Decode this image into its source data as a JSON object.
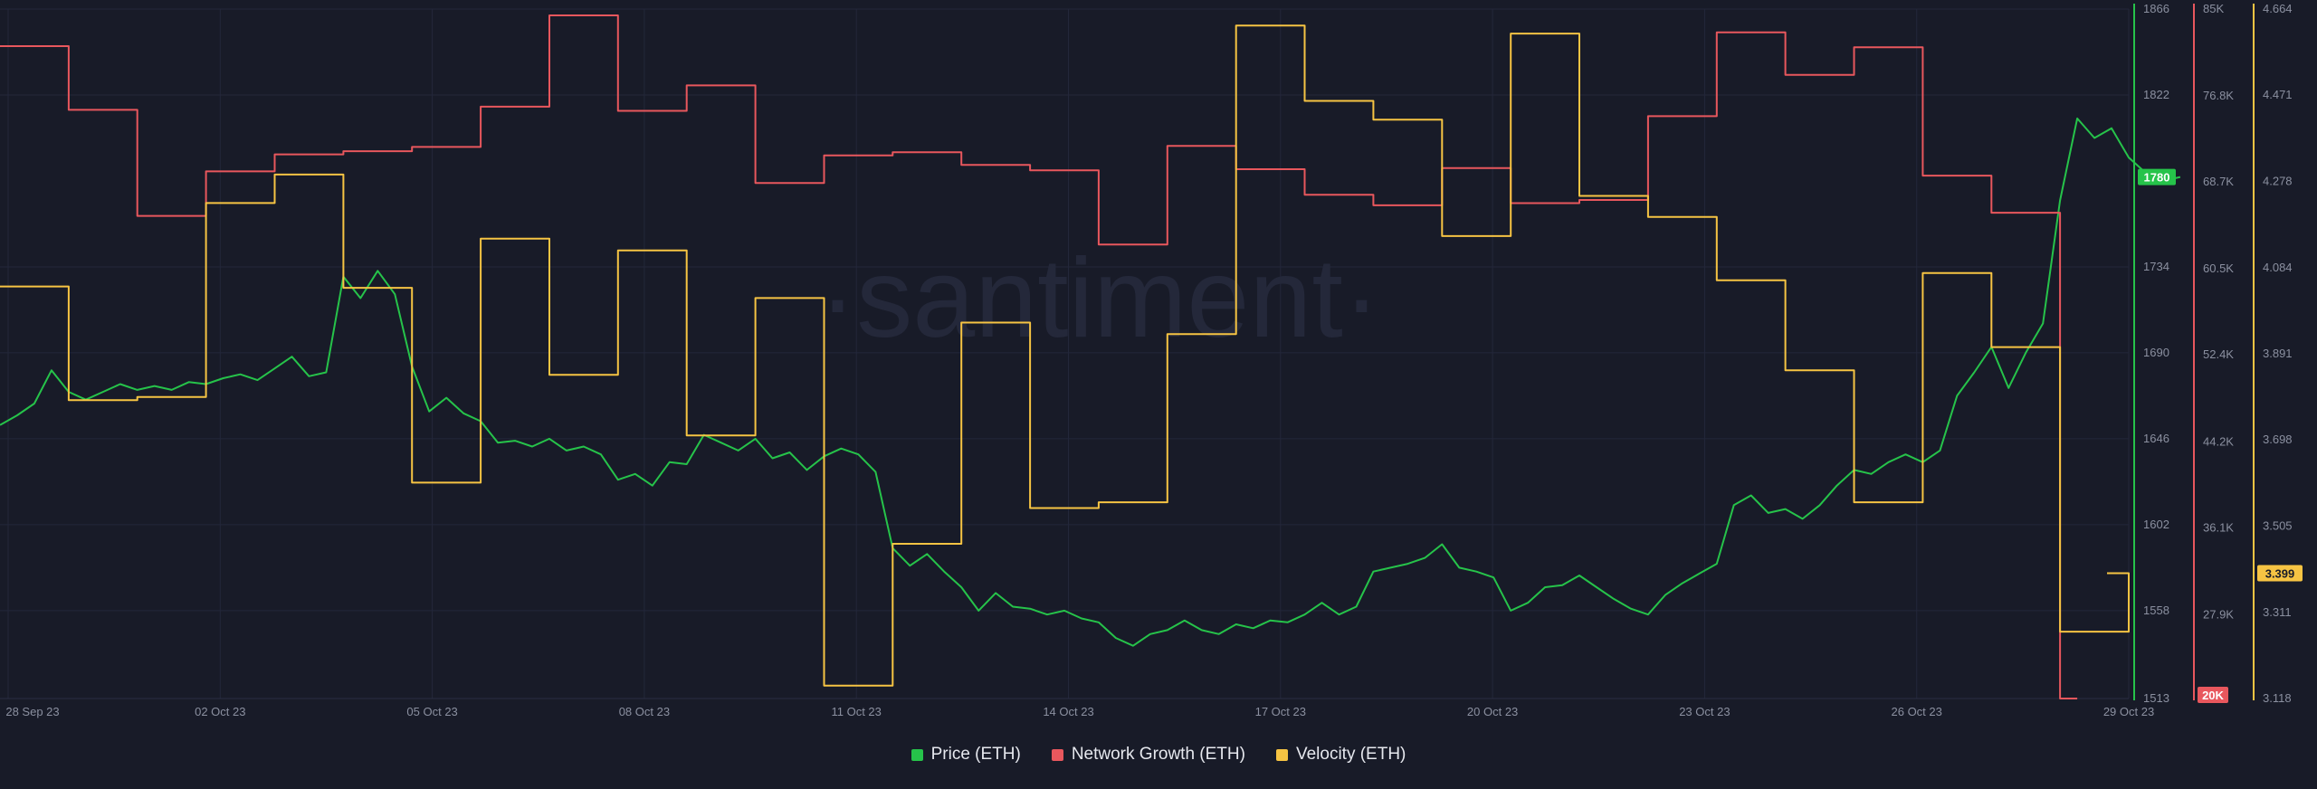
{
  "colors": {
    "background": "#181b28",
    "grid": "#23273a",
    "price": "#26c34a",
    "network_growth": "#e8575d",
    "velocity": "#f6c443",
    "tick_text": "#8b90a0",
    "watermark": "#24283a"
  },
  "watermark": "·santiment·",
  "legend": {
    "price": "Price (ETH)",
    "network_growth": "Network Growth (ETH)",
    "velocity": "Velocity (ETH)"
  },
  "chart_data": {
    "type": "line",
    "title": "",
    "xlabel": "",
    "x_ticks": [
      "28 Sep 23",
      "02 Oct 23",
      "05 Oct 23",
      "08 Oct 23",
      "11 Oct 23",
      "14 Oct 23",
      "17 Oct 23",
      "20 Oct 23",
      "23 Oct 23",
      "26 Oct 23",
      "29 Oct 23"
    ],
    "x_range": [
      "2023-09-28",
      "2023-10-29"
    ],
    "grid": true,
    "legend_position": "bottom-center",
    "axes": {
      "price": {
        "ticks": [
          "1866",
          "1822",
          "1734",
          "1690",
          "1646",
          "1602",
          "1558",
          "1513"
        ],
        "range": [
          1513,
          1866
        ],
        "current_label": "1780",
        "current": 1780
      },
      "network_growth": {
        "ticks": [
          "85K",
          "76.8K",
          "68.7K",
          "60.5K",
          "52.4K",
          "44.2K",
          "36.1K",
          "27.9K"
        ],
        "range": [
          20000,
          85000
        ],
        "current_label": "20K",
        "current": 20000
      },
      "velocity": {
        "ticks": [
          "4.664",
          "4.471",
          "4.278",
          "4.084",
          "3.891",
          "3.698",
          "3.505",
          "3.311",
          "3.118"
        ],
        "range": [
          3.118,
          4.664
        ],
        "current_label": "3.399",
        "current": 3.399
      }
    },
    "series": [
      {
        "name": "Price (ETH)",
        "key": "price",
        "step": false,
        "points": [
          [
            "2023-09-28 00:00",
            1653
          ],
          [
            "2023-09-28 06:00",
            1658
          ],
          [
            "2023-09-28 12:00",
            1664
          ],
          [
            "2023-09-28 18:00",
            1681
          ],
          [
            "2023-09-29 00:00",
            1670
          ],
          [
            "2023-09-29 06:00",
            1666
          ],
          [
            "2023-09-29 12:00",
            1670
          ],
          [
            "2023-09-29 18:00",
            1674
          ],
          [
            "2023-09-30 00:00",
            1671
          ],
          [
            "2023-09-30 06:00",
            1673
          ],
          [
            "2023-09-30 12:00",
            1671
          ],
          [
            "2023-09-30 18:00",
            1675
          ],
          [
            "2023-10-01 00:00",
            1674
          ],
          [
            "2023-10-01 06:00",
            1677
          ],
          [
            "2023-10-01 12:00",
            1679
          ],
          [
            "2023-10-01 18:00",
            1676
          ],
          [
            "2023-10-02 00:00",
            1682
          ],
          [
            "2023-10-02 06:00",
            1688
          ],
          [
            "2023-10-02 12:00",
            1678
          ],
          [
            "2023-10-02 18:00",
            1680
          ],
          [
            "2023-10-03 00:00",
            1729
          ],
          [
            "2023-10-03 06:00",
            1718
          ],
          [
            "2023-10-03 12:00",
            1732
          ],
          [
            "2023-10-03 18:00",
            1720
          ],
          [
            "2023-10-04 00:00",
            1683
          ],
          [
            "2023-10-04 06:00",
            1660
          ],
          [
            "2023-10-04 12:00",
            1667
          ],
          [
            "2023-10-04 18:00",
            1659
          ],
          [
            "2023-10-05 00:00",
            1655
          ],
          [
            "2023-10-05 06:00",
            1644
          ],
          [
            "2023-10-05 12:00",
            1645
          ],
          [
            "2023-10-05 18:00",
            1642
          ],
          [
            "2023-10-06 00:00",
            1646
          ],
          [
            "2023-10-06 06:00",
            1640
          ],
          [
            "2023-10-06 12:00",
            1642
          ],
          [
            "2023-10-06 18:00",
            1638
          ],
          [
            "2023-10-07 00:00",
            1625
          ],
          [
            "2023-10-07 06:00",
            1628
          ],
          [
            "2023-10-07 12:00",
            1622
          ],
          [
            "2023-10-07 18:00",
            1634
          ],
          [
            "2023-10-08 00:00",
            1633
          ],
          [
            "2023-10-08 06:00",
            1648
          ],
          [
            "2023-10-08 12:00",
            1644
          ],
          [
            "2023-10-08 18:00",
            1640
          ],
          [
            "2023-10-09 00:00",
            1646
          ],
          [
            "2023-10-09 06:00",
            1636
          ],
          [
            "2023-10-09 12:00",
            1639
          ],
          [
            "2023-10-09 18:00",
            1630
          ],
          [
            "2023-10-10 00:00",
            1637
          ],
          [
            "2023-10-10 06:00",
            1641
          ],
          [
            "2023-10-10 12:00",
            1638
          ],
          [
            "2023-10-10 18:00",
            1629
          ],
          [
            "2023-10-11 00:00",
            1590
          ],
          [
            "2023-10-11 06:00",
            1581
          ],
          [
            "2023-10-11 12:00",
            1587
          ],
          [
            "2023-10-11 18:00",
            1578
          ],
          [
            "2023-10-12 00:00",
            1570
          ],
          [
            "2023-10-12 06:00",
            1558
          ],
          [
            "2023-10-12 12:00",
            1567
          ],
          [
            "2023-10-12 18:00",
            1560
          ],
          [
            "2023-10-13 00:00",
            1559
          ],
          [
            "2023-10-13 06:00",
            1556
          ],
          [
            "2023-10-13 12:00",
            1558
          ],
          [
            "2023-10-13 18:00",
            1554
          ],
          [
            "2023-10-14 00:00",
            1552
          ],
          [
            "2023-10-14 06:00",
            1544
          ],
          [
            "2023-10-14 12:00",
            1540
          ],
          [
            "2023-10-14 18:00",
            1546
          ],
          [
            "2023-10-15 00:00",
            1548
          ],
          [
            "2023-10-15 06:00",
            1553
          ],
          [
            "2023-10-15 12:00",
            1548
          ],
          [
            "2023-10-15 18:00",
            1546
          ],
          [
            "2023-10-16 00:00",
            1551
          ],
          [
            "2023-10-16 06:00",
            1549
          ],
          [
            "2023-10-16 12:00",
            1553
          ],
          [
            "2023-10-16 18:00",
            1552
          ],
          [
            "2023-10-17 00:00",
            1556
          ],
          [
            "2023-10-17 06:00",
            1562
          ],
          [
            "2023-10-17 12:00",
            1556
          ],
          [
            "2023-10-17 18:00",
            1560
          ],
          [
            "2023-10-18 00:00",
            1578
          ],
          [
            "2023-10-18 06:00",
            1580
          ],
          [
            "2023-10-18 12:00",
            1582
          ],
          [
            "2023-10-18 18:00",
            1585
          ],
          [
            "2023-10-19 00:00",
            1592
          ],
          [
            "2023-10-19 06:00",
            1580
          ],
          [
            "2023-10-19 12:00",
            1578
          ],
          [
            "2023-10-19 18:00",
            1575
          ],
          [
            "2023-10-20 00:00",
            1558
          ],
          [
            "2023-10-20 06:00",
            1562
          ],
          [
            "2023-10-20 12:00",
            1570
          ],
          [
            "2023-10-20 18:00",
            1571
          ],
          [
            "2023-10-21 00:00",
            1576
          ],
          [
            "2023-10-21 06:00",
            1570
          ],
          [
            "2023-10-21 12:00",
            1564
          ],
          [
            "2023-10-21 18:00",
            1559
          ],
          [
            "2023-10-22 00:00",
            1556
          ],
          [
            "2023-10-22 06:00",
            1566
          ],
          [
            "2023-10-22 12:00",
            1572
          ],
          [
            "2023-10-22 18:00",
            1577
          ],
          [
            "2023-10-23 00:00",
            1582
          ],
          [
            "2023-10-23 06:00",
            1612
          ],
          [
            "2023-10-23 12:00",
            1617
          ],
          [
            "2023-10-23 18:00",
            1608
          ],
          [
            "2023-10-24 00:00",
            1610
          ],
          [
            "2023-10-24 06:00",
            1605
          ],
          [
            "2023-10-24 12:00",
            1612
          ],
          [
            "2023-10-24 18:00",
            1622
          ],
          [
            "2023-10-25 00:00",
            1630
          ],
          [
            "2023-10-25 06:00",
            1628
          ],
          [
            "2023-10-25 12:00",
            1634
          ],
          [
            "2023-10-25 18:00",
            1638
          ],
          [
            "2023-10-26 00:00",
            1634
          ],
          [
            "2023-10-26 06:00",
            1640
          ],
          [
            "2023-10-26 12:00",
            1668
          ],
          [
            "2023-10-26 18:00",
            1680
          ],
          [
            "2023-10-27 00:00",
            1693
          ],
          [
            "2023-10-27 06:00",
            1672
          ],
          [
            "2023-10-27 12:00",
            1690
          ],
          [
            "2023-10-27 18:00",
            1705
          ],
          [
            "2023-10-28 00:00",
            1768
          ],
          [
            "2023-10-28 06:00",
            1810
          ],
          [
            "2023-10-28 12:00",
            1800
          ],
          [
            "2023-10-28 18:00",
            1805
          ],
          [
            "2023-10-29 00:00",
            1790
          ],
          [
            "2023-10-29 06:00",
            1782
          ],
          [
            "2023-10-29 12:00",
            1778
          ],
          [
            "2023-10-29 18:00",
            1780
          ]
        ]
      },
      {
        "name": "Network Growth (ETH)",
        "key": "network_growth",
        "step": true,
        "points": [
          [
            "2023-09-28",
            81500
          ],
          [
            "2023-09-29",
            75500
          ],
          [
            "2023-09-30",
            65500
          ],
          [
            "2023-10-01",
            69700
          ],
          [
            "2023-10-02",
            71300
          ],
          [
            "2023-10-03",
            71600
          ],
          [
            "2023-10-04",
            72000
          ],
          [
            "2023-10-05",
            75800
          ],
          [
            "2023-10-06",
            84400
          ],
          [
            "2023-10-07",
            75400
          ],
          [
            "2023-10-08",
            77800
          ],
          [
            "2023-10-09",
            68600
          ],
          [
            "2023-10-10",
            71200
          ],
          [
            "2023-10-11",
            71500
          ],
          [
            "2023-10-12",
            70300
          ],
          [
            "2023-10-13",
            69800
          ],
          [
            "2023-10-14",
            62800
          ],
          [
            "2023-10-15",
            72100
          ],
          [
            "2023-10-16",
            69900
          ],
          [
            "2023-10-17",
            67500
          ],
          [
            "2023-10-18",
            66500
          ],
          [
            "2023-10-19",
            70000
          ],
          [
            "2023-10-20",
            66700
          ],
          [
            "2023-10-21",
            67000
          ],
          [
            "2023-10-22",
            74900
          ],
          [
            "2023-10-23",
            82800
          ],
          [
            "2023-10-24",
            78800
          ],
          [
            "2023-10-25",
            81400
          ],
          [
            "2023-10-26",
            69300
          ],
          [
            "2023-10-27",
            65800
          ],
          [
            "2023-10-28",
            20000
          ]
        ]
      },
      {
        "name": "Velocity (ETH)",
        "key": "velocity",
        "step": true,
        "points": [
          [
            "2023-09-28",
            4.042
          ],
          [
            "2023-09-29",
            3.787
          ],
          [
            "2023-09-30",
            3.794
          ],
          [
            "2023-10-01",
            4.229
          ],
          [
            "2023-10-02",
            4.293
          ],
          [
            "2023-10-03",
            4.039
          ],
          [
            "2023-10-04",
            3.602
          ],
          [
            "2023-10-05",
            4.149
          ],
          [
            "2023-10-06",
            3.844
          ],
          [
            "2023-10-07",
            4.123
          ],
          [
            "2023-10-08",
            3.708
          ],
          [
            "2023-10-09",
            4.016
          ],
          [
            "2023-10-10",
            3.147
          ],
          [
            "2023-10-11",
            3.465
          ],
          [
            "2023-10-12",
            3.961
          ],
          [
            "2023-10-13",
            3.545
          ],
          [
            "2023-10-14",
            3.558
          ],
          [
            "2023-10-15",
            3.935
          ],
          [
            "2023-10-16",
            4.627
          ],
          [
            "2023-10-17",
            4.458
          ],
          [
            "2023-10-18",
            4.416
          ],
          [
            "2023-10-19",
            4.155
          ],
          [
            "2023-10-20",
            4.609
          ],
          [
            "2023-10-21",
            4.245
          ],
          [
            "2023-10-22",
            4.198
          ],
          [
            "2023-10-23",
            4.056
          ],
          [
            "2023-10-24",
            3.854
          ],
          [
            "2023-10-25",
            3.558
          ],
          [
            "2023-10-26",
            4.072
          ],
          [
            "2023-10-27",
            3.906
          ],
          [
            "2023-10-28",
            3.268
          ],
          [
            "2023-10-29",
            3.399
          ]
        ]
      }
    ]
  }
}
